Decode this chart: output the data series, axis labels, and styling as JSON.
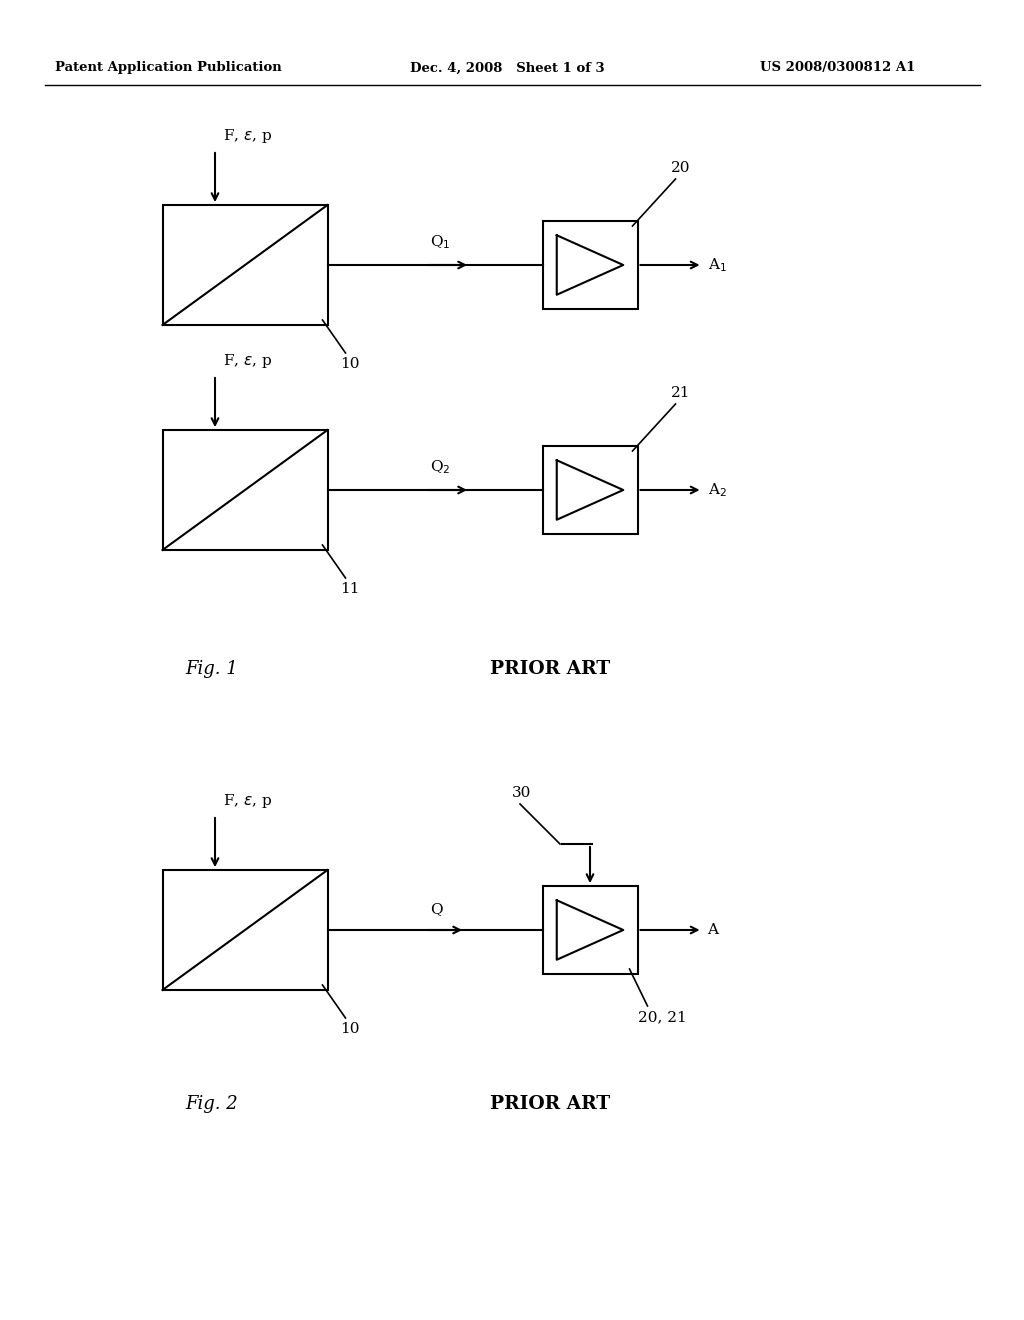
{
  "header_left": "Patent Application Publication",
  "header_center": "Dec. 4, 2008   Sheet 1 of 3",
  "header_right": "US 2008/0300812 A1",
  "fig1_label": "Fig. 1",
  "fig2_label": "Fig. 2",
  "prior_art": "PRIOR ART",
  "background_color": "#ffffff",
  "line_color": "#000000",
  "font_color": "#000000",
  "page_width": 10.24,
  "page_height": 13.2
}
